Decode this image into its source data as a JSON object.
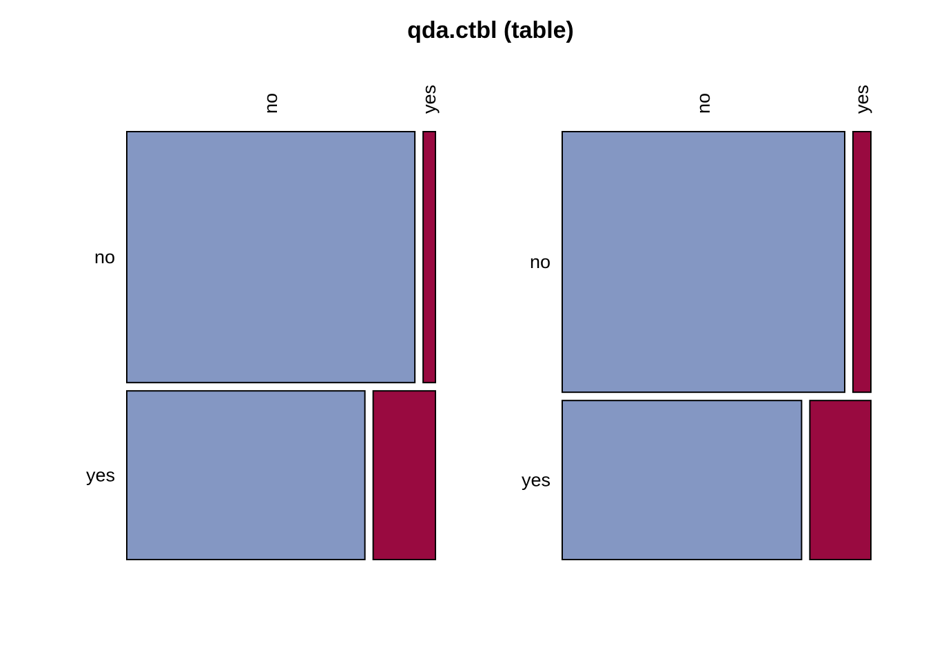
{
  "chart_data": {
    "type": "mosaic",
    "title": "qda.ctbl (table)",
    "colors": {
      "no": "#8497c3",
      "yes": "#990a40",
      "border": "#000000"
    },
    "panels": [
      {
        "row_labels": [
          "no",
          "yes"
        ],
        "col_labels": [
          "no",
          "yes"
        ],
        "counts": [
          [
            0.585,
            0.025
          ],
          [
            0.325,
            0.085
          ]
        ]
      },
      {
        "row_labels": [
          "no",
          "yes"
        ],
        "col_labels": [
          "no",
          "yes"
        ],
        "counts": [
          [
            0.584,
            0.037
          ],
          [
            0.302,
            0.077
          ]
        ]
      }
    ]
  }
}
